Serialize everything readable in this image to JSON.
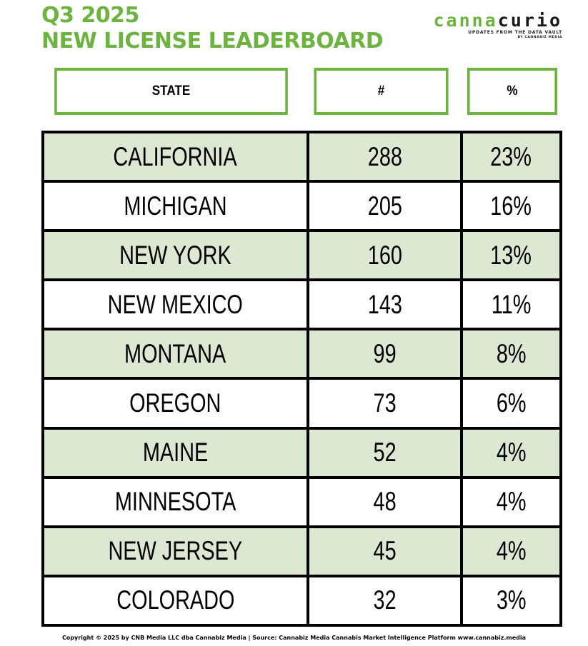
{
  "header": {
    "title_line1": "Q3 2025",
    "title_line2": "NEW LICENSE LEADERBOARD"
  },
  "logo": {
    "word_part1": "canna",
    "word_part2": "curio",
    "tagline": "UPDATES FROM THE DATA VAULT",
    "byline": "BY CANNABIZ MEDIA"
  },
  "chart_data": {
    "type": "table",
    "columns": [
      "STATE",
      "#",
      "%"
    ],
    "rows": [
      {
        "state": "CALIFORNIA",
        "count": "288",
        "pct": "23%"
      },
      {
        "state": "MICHIGAN",
        "count": "205",
        "pct": "16%"
      },
      {
        "state": "NEW YORK",
        "count": "160",
        "pct": "13%"
      },
      {
        "state": "NEW MEXICO",
        "count": "143",
        "pct": "11%"
      },
      {
        "state": "MONTANA",
        "count": "99",
        "pct": "8%"
      },
      {
        "state": "OREGON",
        "count": "73",
        "pct": "6%"
      },
      {
        "state": "MAINE",
        "count": "52",
        "pct": "4%"
      },
      {
        "state": "MINNESOTA",
        "count": "48",
        "pct": "4%"
      },
      {
        "state": "NEW JERSEY",
        "count": "45",
        "pct": "4%"
      },
      {
        "state": "COLORADO",
        "count": "32",
        "pct": "3%"
      }
    ]
  },
  "colors": {
    "accent_green": "#6db33f",
    "row_shade": "#dce8d1"
  },
  "footer": {
    "text": "Copyright © 2025 by CNB Media LLC dba Cannabiz Media | Source: Cannabiz Media Cannabis Market Intelligence Platform www.cannabiz.media"
  }
}
